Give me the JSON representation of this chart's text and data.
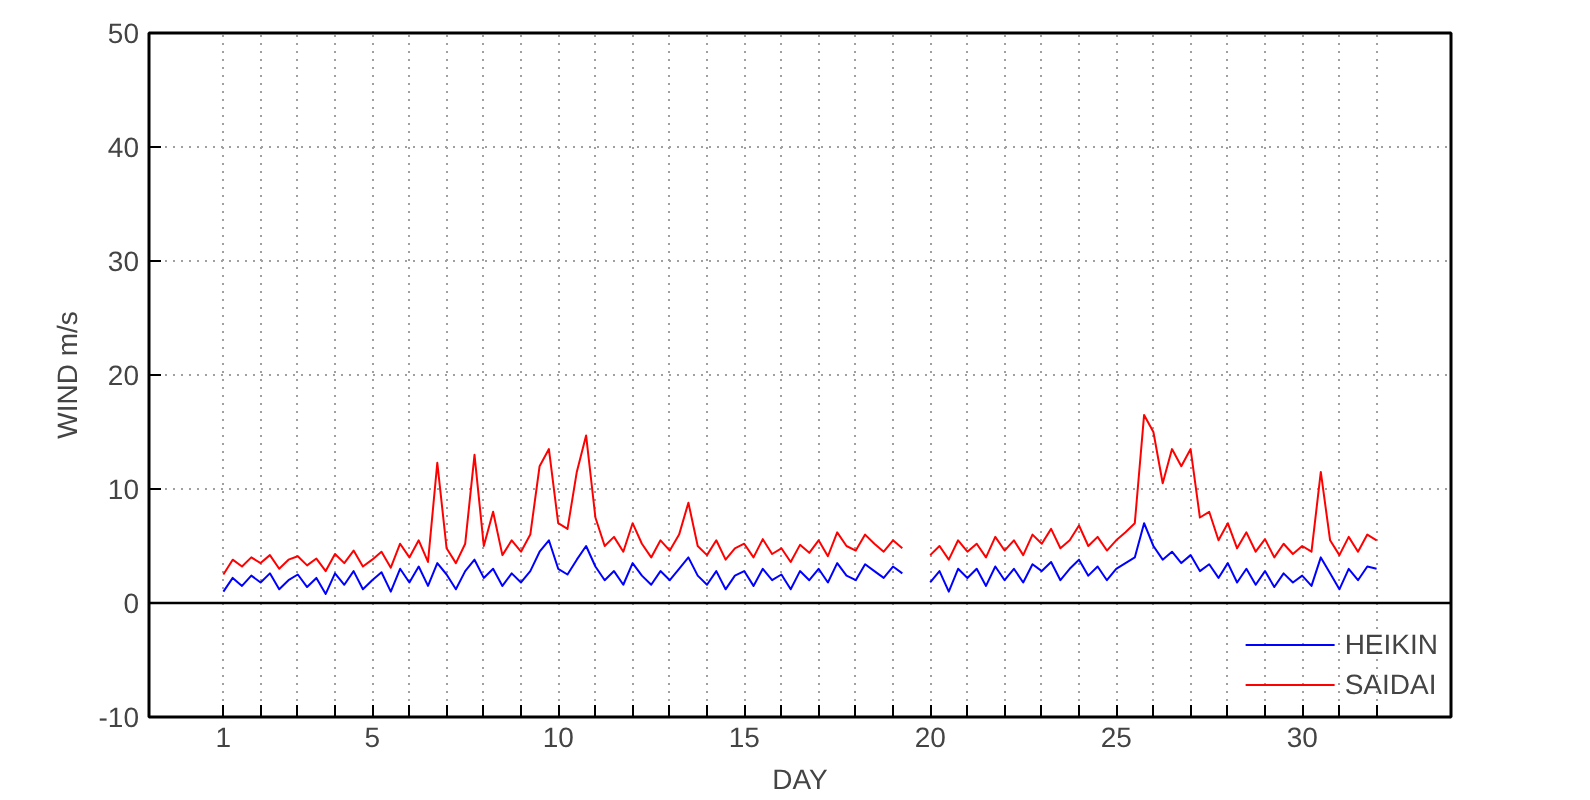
{
  "chart_data": {
    "type": "line",
    "xlabel": "DAY",
    "ylabel": "WIND m/s",
    "x": [
      1,
      1.25,
      1.5,
      1.75,
      2,
      2.25,
      2.5,
      2.75,
      3,
      3.25,
      3.5,
      3.75,
      4,
      4.25,
      4.5,
      4.75,
      5,
      5.25,
      5.5,
      5.75,
      6,
      6.25,
      6.5,
      6.75,
      7,
      7.25,
      7.5,
      7.75,
      8,
      8.25,
      8.5,
      8.75,
      9,
      9.25,
      9.5,
      9.75,
      10,
      10.25,
      10.5,
      10.75,
      11,
      11.25,
      11.5,
      11.75,
      12,
      12.25,
      12.5,
      12.75,
      13,
      13.25,
      13.5,
      13.75,
      14,
      14.25,
      14.5,
      14.75,
      15,
      15.25,
      15.5,
      15.75,
      16,
      16.25,
      16.5,
      16.75,
      17,
      17.25,
      17.5,
      17.75,
      18,
      18.25,
      18.5,
      18.75,
      19,
      19.25,
      19.5,
      19.75,
      20,
      20.25,
      20.5,
      20.75,
      21,
      21.25,
      21.5,
      21.75,
      22,
      22.25,
      22.5,
      22.75,
      23,
      23.25,
      23.5,
      23.75,
      24,
      24.25,
      24.5,
      24.75,
      25,
      25.25,
      25.5,
      25.75,
      26,
      26.25,
      26.5,
      26.75,
      27,
      27.25,
      27.5,
      27.75,
      28,
      28.25,
      28.5,
      28.75,
      29,
      29.25,
      29.5,
      29.75,
      30,
      30.25,
      30.5,
      30.75,
      31,
      31.25,
      31.5,
      31.75,
      32
    ],
    "series": [
      {
        "name": "HEIKIN",
        "color": "#0000ff",
        "values": [
          1.0,
          2.2,
          1.5,
          2.4,
          1.8,
          2.6,
          1.2,
          2.0,
          2.5,
          1.4,
          2.2,
          0.8,
          2.6,
          1.6,
          2.8,
          1.2,
          2.0,
          2.7,
          1.0,
          3.0,
          1.8,
          3.2,
          1.5,
          3.5,
          2.5,
          1.2,
          2.8,
          3.8,
          2.2,
          3.0,
          1.5,
          2.6,
          1.8,
          2.8,
          4.5,
          5.5,
          3.0,
          2.5,
          3.8,
          5.0,
          3.2,
          2.0,
          2.8,
          1.6,
          3.5,
          2.4,
          1.6,
          2.8,
          2.0,
          3.0,
          4.0,
          2.4,
          1.6,
          2.8,
          1.2,
          2.4,
          2.8,
          1.5,
          3.0,
          2.0,
          2.5,
          1.2,
          2.8,
          2.0,
          3.0,
          1.8,
          3.5,
          2.4,
          2.0,
          3.4,
          2.8,
          2.2,
          3.2,
          2.6,
          null,
          null,
          1.8,
          2.8,
          1.0,
          3.0,
          2.2,
          3.0,
          1.5,
          3.2,
          2.0,
          3.0,
          1.8,
          3.4,
          2.8,
          3.6,
          2.0,
          3.0,
          3.8,
          2.4,
          3.2,
          2.0,
          3.0,
          3.5,
          4.0,
          7.0,
          5.0,
          3.8,
          4.5,
          3.5,
          4.2,
          2.8,
          3.4,
          2.2,
          3.5,
          1.8,
          3.0,
          1.6,
          2.8,
          1.4,
          2.6,
          1.8,
          2.4,
          1.5,
          4.0,
          2.6,
          1.2,
          3.0,
          2.0,
          3.2,
          3.0
        ]
      },
      {
        "name": "SAIDAI",
        "color": "#ff0000",
        "values": [
          2.5,
          3.8,
          3.2,
          4.0,
          3.5,
          4.2,
          3.0,
          3.8,
          4.1,
          3.3,
          3.9,
          2.8,
          4.3,
          3.5,
          4.6,
          3.2,
          3.8,
          4.5,
          3.1,
          5.2,
          4.0,
          5.5,
          3.6,
          12.3,
          4.8,
          3.5,
          5.2,
          13.0,
          5.0,
          8.0,
          4.2,
          5.5,
          4.5,
          6.0,
          12.0,
          13.5,
          7.0,
          6.5,
          11.5,
          14.7,
          7.5,
          5.0,
          5.8,
          4.5,
          7.0,
          5.2,
          4.0,
          5.5,
          4.6,
          6.0,
          8.8,
          5.0,
          4.2,
          5.5,
          3.8,
          4.8,
          5.2,
          4.0,
          5.6,
          4.3,
          4.8,
          3.6,
          5.1,
          4.4,
          5.5,
          4.1,
          6.2,
          5.0,
          4.6,
          6.0,
          5.2,
          4.5,
          5.5,
          4.8,
          null,
          null,
          4.2,
          5.0,
          3.8,
          5.5,
          4.5,
          5.2,
          4.0,
          5.8,
          4.6,
          5.5,
          4.2,
          6.0,
          5.2,
          6.5,
          4.8,
          5.5,
          6.8,
          5.0,
          5.8,
          4.6,
          5.5,
          6.2,
          7.0,
          16.5,
          15.0,
          10.5,
          13.5,
          12.0,
          13.5,
          7.5,
          8.0,
          5.5,
          7.0,
          4.8,
          6.2,
          4.5,
          5.6,
          4.0,
          5.2,
          4.3,
          5.0,
          4.5,
          11.5,
          5.5,
          4.2,
          5.8,
          4.5,
          6.0,
          5.5
        ]
      }
    ],
    "xlim": [
      -1,
      34
    ],
    "xticks": [
      1,
      {
        "value": 2,
        "label": null
      },
      {
        "value": 3,
        "label": null
      },
      {
        "value": 4,
        "label": null
      },
      5,
      {
        "value": 6,
        "label": null
      },
      {
        "value": 7,
        "label": null
      },
      {
        "value": 8,
        "label": null
      },
      {
        "value": 9,
        "label": null
      },
      10,
      {
        "value": 11,
        "label": null
      },
      {
        "value": 12,
        "label": null
      },
      {
        "value": 13,
        "label": null
      },
      {
        "value": 14,
        "label": null
      },
      15,
      {
        "value": 16,
        "label": null
      },
      {
        "value": 17,
        "label": null
      },
      {
        "value": 18,
        "label": null
      },
      {
        "value": 19,
        "label": null
      },
      20,
      {
        "value": 21,
        "label": null
      },
      {
        "value": 22,
        "label": null
      },
      {
        "value": 23,
        "label": null
      },
      {
        "value": 24,
        "label": null
      },
      25,
      {
        "value": 26,
        "label": null
      },
      {
        "value": 27,
        "label": null
      },
      {
        "value": 28,
        "label": null
      },
      {
        "value": 29,
        "label": null
      },
      30,
      {
        "value": 31,
        "label": null
      },
      {
        "value": 32,
        "label": null
      }
    ],
    "ylim": [
      -10,
      50
    ],
    "yticks": [
      -10,
      0,
      10,
      20,
      30,
      40,
      50
    ],
    "ref_lines": [
      {
        "axis": "y",
        "value": 0,
        "color": "#000000"
      }
    ],
    "grid": true,
    "legend": "bottom right",
    "marker": "none",
    "line_style": "solid"
  }
}
